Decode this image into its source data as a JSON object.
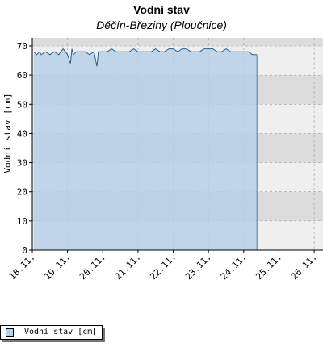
{
  "colors": {
    "fill": "#b8d0e6",
    "line": "#2a5f8e",
    "band_dark": "#dcdcdc",
    "band_light": "#efefef",
    "grid": "#9a9a9a"
  },
  "chart_data": {
    "type": "area",
    "title": "Vodní stav",
    "subtitle": "Děčín-Březiny (Ploučnice)",
    "ylabel": "Vodní stav [cm]",
    "ylim": [
      0,
      70
    ],
    "yticks": [
      0,
      10,
      20,
      30,
      40,
      50,
      60,
      70
    ],
    "xlim": [
      "2023-11-18",
      "2023-11-26T06:00"
    ],
    "xticks": [
      "18.11.",
      "19.11.",
      "20.11.",
      "21.11.",
      "22.11.",
      "23.11.",
      "24.11.",
      "25.11.",
      "26.11."
    ],
    "grid": true,
    "legend_position": "bottom-left",
    "series": [
      {
        "name": "Vodní stav [cm]",
        "x": [
          "2023-11-18T01:00",
          "2023-11-18T03:00",
          "2023-11-18T05:00",
          "2023-11-18T06:00",
          "2023-11-18T09:00",
          "2023-11-18T12:00",
          "2023-11-18T15:00",
          "2023-11-18T18:00",
          "2023-11-18T21:00",
          "2023-11-19T00:00",
          "2023-11-19T02:00",
          "2023-11-19T03:00",
          "2023-11-19T04:00",
          "2023-11-19T06:00",
          "2023-11-19T09:00",
          "2023-11-19T12:00",
          "2023-11-19T15:00",
          "2023-11-19T18:00",
          "2023-11-19T20:00",
          "2023-11-19T21:00",
          "2023-11-19T23:00",
          "2023-11-20T01:00",
          "2023-11-20T03:00",
          "2023-11-20T06:00",
          "2023-11-20T09:00",
          "2023-11-20T12:00",
          "2023-11-20T15:00",
          "2023-11-20T18:00",
          "2023-11-20T21:00",
          "2023-11-21T00:00",
          "2023-11-21T03:00",
          "2023-11-21T06:00",
          "2023-11-21T09:00",
          "2023-11-21T12:00",
          "2023-11-21T15:00",
          "2023-11-21T18:00",
          "2023-11-21T21:00",
          "2023-11-22T00:00",
          "2023-11-22T03:00",
          "2023-11-22T06:00",
          "2023-11-22T09:00",
          "2023-11-22T12:00",
          "2023-11-22T15:00",
          "2023-11-22T18:00",
          "2023-11-22T21:00",
          "2023-11-23T00:00",
          "2023-11-23T03:00",
          "2023-11-23T06:00",
          "2023-11-23T09:00",
          "2023-11-23T12:00",
          "2023-11-23T15:00",
          "2023-11-23T18:00",
          "2023-11-23T21:00",
          "2023-11-24T00:00",
          "2023-11-24T03:00",
          "2023-11-24T06:00",
          "2023-11-24T09:00"
        ],
        "values": [
          68,
          67,
          68,
          67,
          68,
          67,
          68,
          67,
          69,
          67,
          64,
          69,
          67,
          68,
          68,
          68,
          67,
          68,
          63,
          68,
          68,
          68,
          68,
          69,
          68,
          68,
          68,
          68,
          69,
          68,
          68,
          68,
          68,
          69,
          68,
          68,
          69,
          69,
          68,
          69,
          69,
          68,
          68,
          68,
          69,
          69,
          69,
          68,
          68,
          69,
          68,
          68,
          68,
          68,
          68,
          67,
          67
        ]
      }
    ]
  },
  "legend": {
    "label": "Vodní stav [cm]"
  }
}
